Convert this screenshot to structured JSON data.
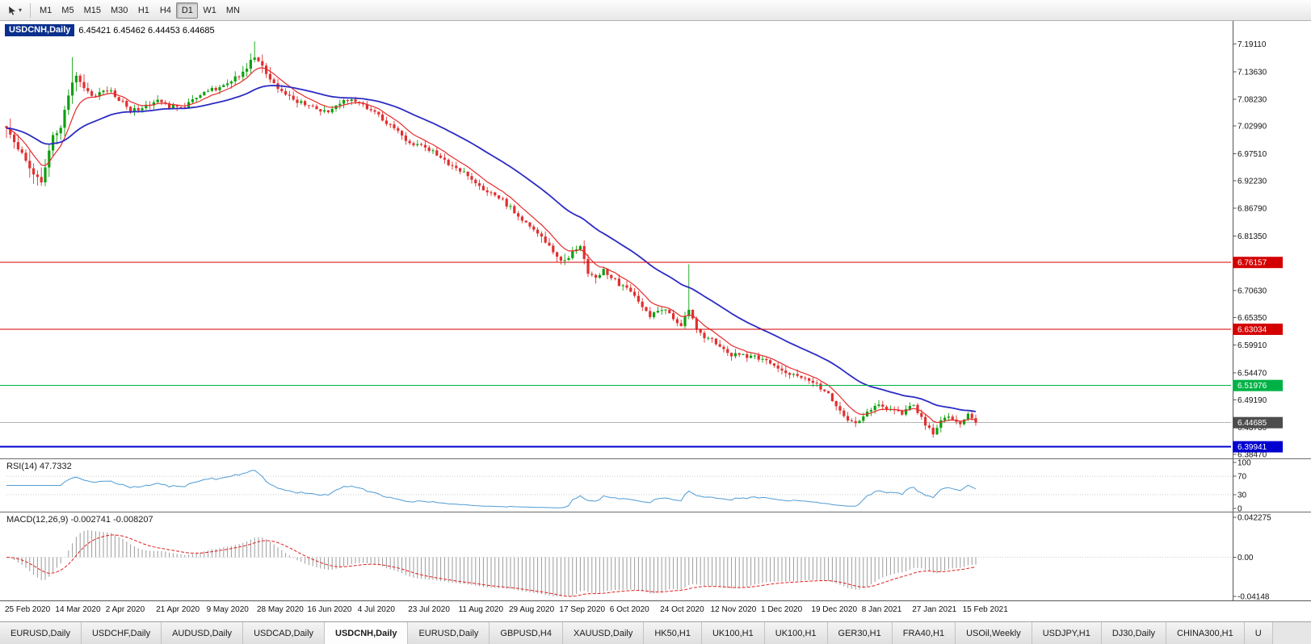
{
  "toolbar": {
    "timeframes": [
      "M1",
      "M5",
      "M15",
      "M30",
      "H1",
      "H4",
      "D1",
      "W1",
      "MN"
    ],
    "active_timeframe": "D1"
  },
  "chart_title": {
    "symbol": "USDCNH,Daily",
    "ohlc": "6.45421 6.45462 6.44453 6.44685"
  },
  "chart_data": {
    "type": "candlestick",
    "symbol": "USDCNH",
    "timeframe": "Daily",
    "bars": 251,
    "price_range": {
      "top": 7.236,
      "bottom": 6.3766
    },
    "y_ticks": [
      7.1911,
      7.1363,
      7.0823,
      7.0299,
      6.9751,
      6.9223,
      6.8679,
      6.8135,
      6.7063,
      6.6535,
      6.5991,
      6.5447,
      6.4919,
      6.4373,
      6.3847
    ],
    "levels": [
      {
        "price": 6.76157,
        "label": "6.76157",
        "color": "#d40000",
        "width": 1,
        "type": "resistance"
      },
      {
        "price": 6.63034,
        "label": "6.63034",
        "color": "#d40000",
        "width": 1,
        "type": "resistance"
      },
      {
        "price": 6.51976,
        "label": "6.51976",
        "color": "#00b246",
        "width": 1,
        "type": "support"
      },
      {
        "price": 6.39941,
        "label": "6.39941",
        "color": "#0000d0",
        "width": 2,
        "type": "support"
      }
    ],
    "current_price": {
      "price": 6.44685,
      "label": "6.44685",
      "chip_color": "#4d4d4d",
      "line_color": "#b5b5b5"
    },
    "candle_colors": {
      "bull": "#0fa00f",
      "bear": "#e03030"
    },
    "moving_averages": [
      {
        "period": 8,
        "type": "ema",
        "color": "#e52b2b",
        "width": 1.2
      },
      {
        "period": 34,
        "type": "ema",
        "color": "#2c2cc4",
        "width": 1.8
      }
    ],
    "close_path": [
      [
        0,
        7.03
      ],
      [
        2,
        6.997
      ],
      [
        4,
        6.978
      ],
      [
        6,
        6.948
      ],
      [
        8,
        6.928
      ],
      [
        9,
        6.918
      ],
      [
        10,
        6.952
      ],
      [
        12,
        7.008
      ],
      [
        14,
        7.028
      ],
      [
        15,
        7.058
      ],
      [
        16,
        7.092
      ],
      [
        17,
        7.118
      ],
      [
        18,
        7.132
      ],
      [
        19,
        7.118
      ],
      [
        20,
        7.108
      ],
      [
        22,
        7.088
      ],
      [
        24,
        7.096
      ],
      [
        26,
        7.102
      ],
      [
        28,
        7.088
      ],
      [
        30,
        7.076
      ],
      [
        32,
        7.062
      ],
      [
        34,
        7.064
      ],
      [
        36,
        7.072
      ],
      [
        39,
        7.078
      ],
      [
        42,
        7.068
      ],
      [
        45,
        7.064
      ],
      [
        48,
        7.082
      ],
      [
        52,
        7.098
      ],
      [
        55,
        7.106
      ],
      [
        58,
        7.118
      ],
      [
        61,
        7.136
      ],
      [
        63,
        7.156
      ],
      [
        64,
        7.168
      ],
      [
        65,
        7.158
      ],
      [
        67,
        7.132
      ],
      [
        69,
        7.11
      ],
      [
        71,
        7.096
      ],
      [
        73,
        7.086
      ],
      [
        75,
        7.079
      ],
      [
        78,
        7.071
      ],
      [
        80,
        7.063
      ],
      [
        83,
        7.059
      ],
      [
        86,
        7.076
      ],
      [
        88,
        7.083
      ],
      [
        91,
        7.073
      ],
      [
        94,
        7.059
      ],
      [
        97,
        7.043
      ],
      [
        100,
        7.023
      ],
      [
        102,
        7.009
      ],
      [
        104,
        6.999
      ],
      [
        106,
        6.993
      ],
      [
        108,
        6.989
      ],
      [
        110,
        6.979
      ],
      [
        112,
        6.969
      ],
      [
        114,
        6.956
      ],
      [
        117,
        6.943
      ],
      [
        119,
        6.931
      ],
      [
        121,
        6.919
      ],
      [
        123,
        6.906
      ],
      [
        125,
        6.899
      ],
      [
        127,
        6.889
      ],
      [
        130,
        6.869
      ],
      [
        132,
        6.853
      ],
      [
        134,
        6.839
      ],
      [
        136,
        6.826
      ],
      [
        138,
        6.813
      ],
      [
        140,
        6.791
      ],
      [
        142,
        6.769
      ],
      [
        144,
        6.763
      ],
      [
        146,
        6.783
      ],
      [
        148,
        6.793
      ],
      [
        150,
        6.743
      ],
      [
        152,
        6.731
      ],
      [
        154,
        6.749
      ],
      [
        156,
        6.733
      ],
      [
        158,
        6.719
      ],
      [
        160,
        6.711
      ],
      [
        162,
        6.693
      ],
      [
        164,
        6.676
      ],
      [
        166,
        6.656
      ],
      [
        168,
        6.663
      ],
      [
        170,
        6.673
      ],
      [
        172,
        6.653
      ],
      [
        174,
        6.639
      ],
      [
        176,
        6.669
      ],
      [
        178,
        6.626
      ],
      [
        180,
        6.616
      ],
      [
        182,
        6.609
      ],
      [
        184,
        6.593
      ],
      [
        186,
        6.583
      ],
      [
        188,
        6.579
      ],
      [
        190,
        6.581
      ],
      [
        192,
        6.576
      ],
      [
        195,
        6.571
      ],
      [
        197,
        6.561
      ],
      [
        199,
        6.553
      ],
      [
        201,
        6.546
      ],
      [
        203,
        6.541
      ],
      [
        205,
        6.536
      ],
      [
        208,
        6.529
      ],
      [
        210,
        6.513
      ],
      [
        212,
        6.501
      ],
      [
        214,
        6.479
      ],
      [
        216,
        6.461
      ],
      [
        218,
        6.446
      ],
      [
        220,
        6.453
      ],
      [
        221,
        6.463
      ],
      [
        223,
        6.473
      ],
      [
        225,
        6.481
      ],
      [
        227,
        6.476
      ],
      [
        229,
        6.469
      ],
      [
        231,
        6.463
      ],
      [
        233,
        6.476
      ],
      [
        234,
        6.481
      ],
      [
        236,
        6.456
      ],
      [
        238,
        6.433
      ],
      [
        239,
        6.426
      ],
      [
        240,
        6.439
      ],
      [
        242,
        6.459
      ],
      [
        244,
        6.453
      ],
      [
        246,
        6.443
      ],
      [
        248,
        6.461
      ],
      [
        250,
        6.447
      ]
    ],
    "wick_highs": {
      "17": 7.165,
      "64": 7.196,
      "176": 6.758
    },
    "x_labels": [
      {
        "day": 0,
        "text": "25 Feb 2020"
      },
      {
        "day": 13,
        "text": "14 Mar 2020"
      },
      {
        "day": 26,
        "text": "2 Apr 2020"
      },
      {
        "day": 39,
        "text": "21 Apr 2020"
      },
      {
        "day": 52,
        "text": "9 May 2020"
      },
      {
        "day": 65,
        "text": "28 May 2020"
      },
      {
        "day": 78,
        "text": "16 Jun 2020"
      },
      {
        "day": 91,
        "text": "4 Jul 2020"
      },
      {
        "day": 104,
        "text": "23 Jul 2020"
      },
      {
        "day": 117,
        "text": "11 Aug 2020"
      },
      {
        "day": 130,
        "text": "29 Aug 2020"
      },
      {
        "day": 143,
        "text": "17 Sep 2020"
      },
      {
        "day": 156,
        "text": "6 Oct 2020"
      },
      {
        "day": 169,
        "text": "24 Oct 2020"
      },
      {
        "day": 182,
        "text": "12 Nov 2020"
      },
      {
        "day": 195,
        "text": "1 Dec 2020"
      },
      {
        "day": 208,
        "text": "19 Dec 2020"
      },
      {
        "day": 221,
        "text": "8 Jan 2021"
      },
      {
        "day": 234,
        "text": "27 Jan 2021"
      },
      {
        "day": 247,
        "text": "15 Feb 2021"
      }
    ],
    "indicators": {
      "rsi": {
        "label": "RSI(14) 47.7332",
        "period": 14,
        "current": 47.7332,
        "scale": [
          100,
          70,
          30,
          0
        ],
        "guide_levels": [
          70,
          30
        ],
        "color": "#4e9bd4"
      },
      "macd": {
        "label": "MACD(12,26,9) -0.002741 -0.008207",
        "fast": 12,
        "slow": 26,
        "signal": 9,
        "macd_value": -0.002741,
        "signal_value": -0.008207,
        "scale": {
          "top": 0.042275,
          "bottom": -0.04148
        },
        "axis_labels": [
          "0.042275",
          "0.00",
          "-0.04148"
        ],
        "histogram_color": "#9b9b9b",
        "signal_color": "#e02020"
      }
    }
  },
  "tabs": {
    "items": [
      "EURUSD,Daily",
      "USDCHF,Daily",
      "AUDUSD,Daily",
      "USDCAD,Daily",
      "USDCNH,Daily",
      "EURUSD,Daily",
      "GBPUSD,H4",
      "XAUUSD,Daily",
      "HK50,H1",
      "UK100,H1",
      "UK100,H1",
      "GER30,H1",
      "FRA40,H1",
      "USOil,Weekly",
      "USDJPY,H1",
      "DJ30,Daily",
      "CHINA300,H1",
      "U"
    ],
    "active_index": 4
  }
}
